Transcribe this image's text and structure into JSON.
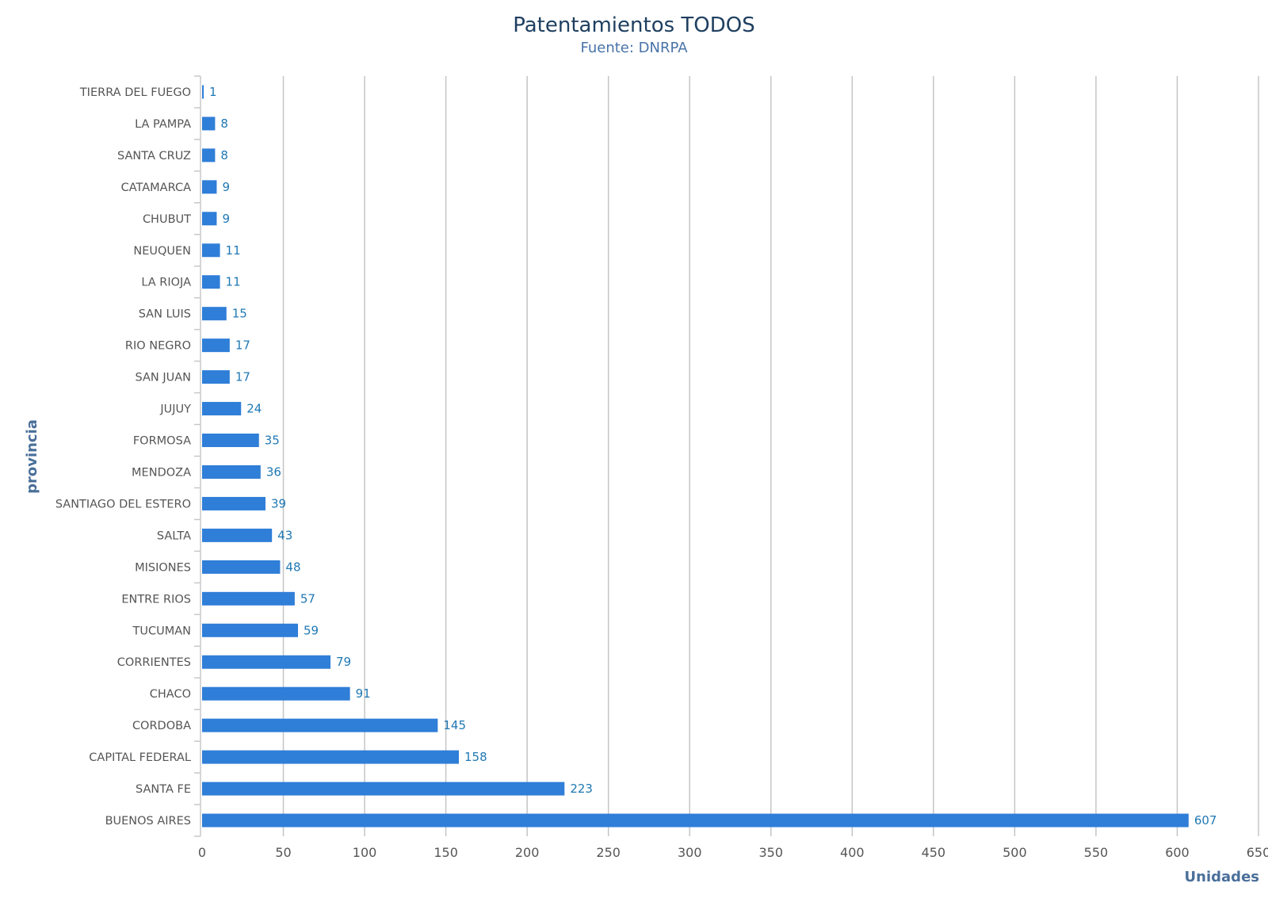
{
  "chart_data": {
    "type": "bar",
    "orientation": "horizontal",
    "title": "Patentamientos TODOS",
    "subtitle": "Fuente: DNRPA",
    "xlabel": "Unidades",
    "ylabel": "provincia",
    "xlim": [
      0,
      650
    ],
    "x_ticks": [
      "0",
      "50",
      "100",
      "150",
      "200",
      "250",
      "300",
      "350",
      "400",
      "450",
      "500",
      "550",
      "600",
      "650"
    ],
    "grid": true,
    "legend": "none",
    "bar_color": "#2f7ed8",
    "categories": [
      "TIERRA DEL FUEGO",
      "LA PAMPA",
      "SANTA CRUZ",
      "CATAMARCA",
      "CHUBUT",
      "NEUQUEN",
      "LA RIOJA",
      "SAN LUIS",
      "RIO NEGRO",
      "SAN JUAN",
      "JUJUY",
      "FORMOSA",
      "MENDOZA",
      "SANTIAGO DEL ESTERO",
      "SALTA",
      "MISIONES",
      "ENTRE RIOS",
      "TUCUMAN",
      "CORRIENTES",
      "CHACO",
      "CORDOBA",
      "CAPITAL FEDERAL",
      "SANTA FE",
      "BUENOS AIRES"
    ],
    "values": [
      1,
      8,
      8,
      9,
      9,
      11,
      11,
      15,
      17,
      17,
      24,
      35,
      36,
      39,
      43,
      48,
      57,
      59,
      79,
      91,
      145,
      158,
      223,
      607
    ]
  }
}
